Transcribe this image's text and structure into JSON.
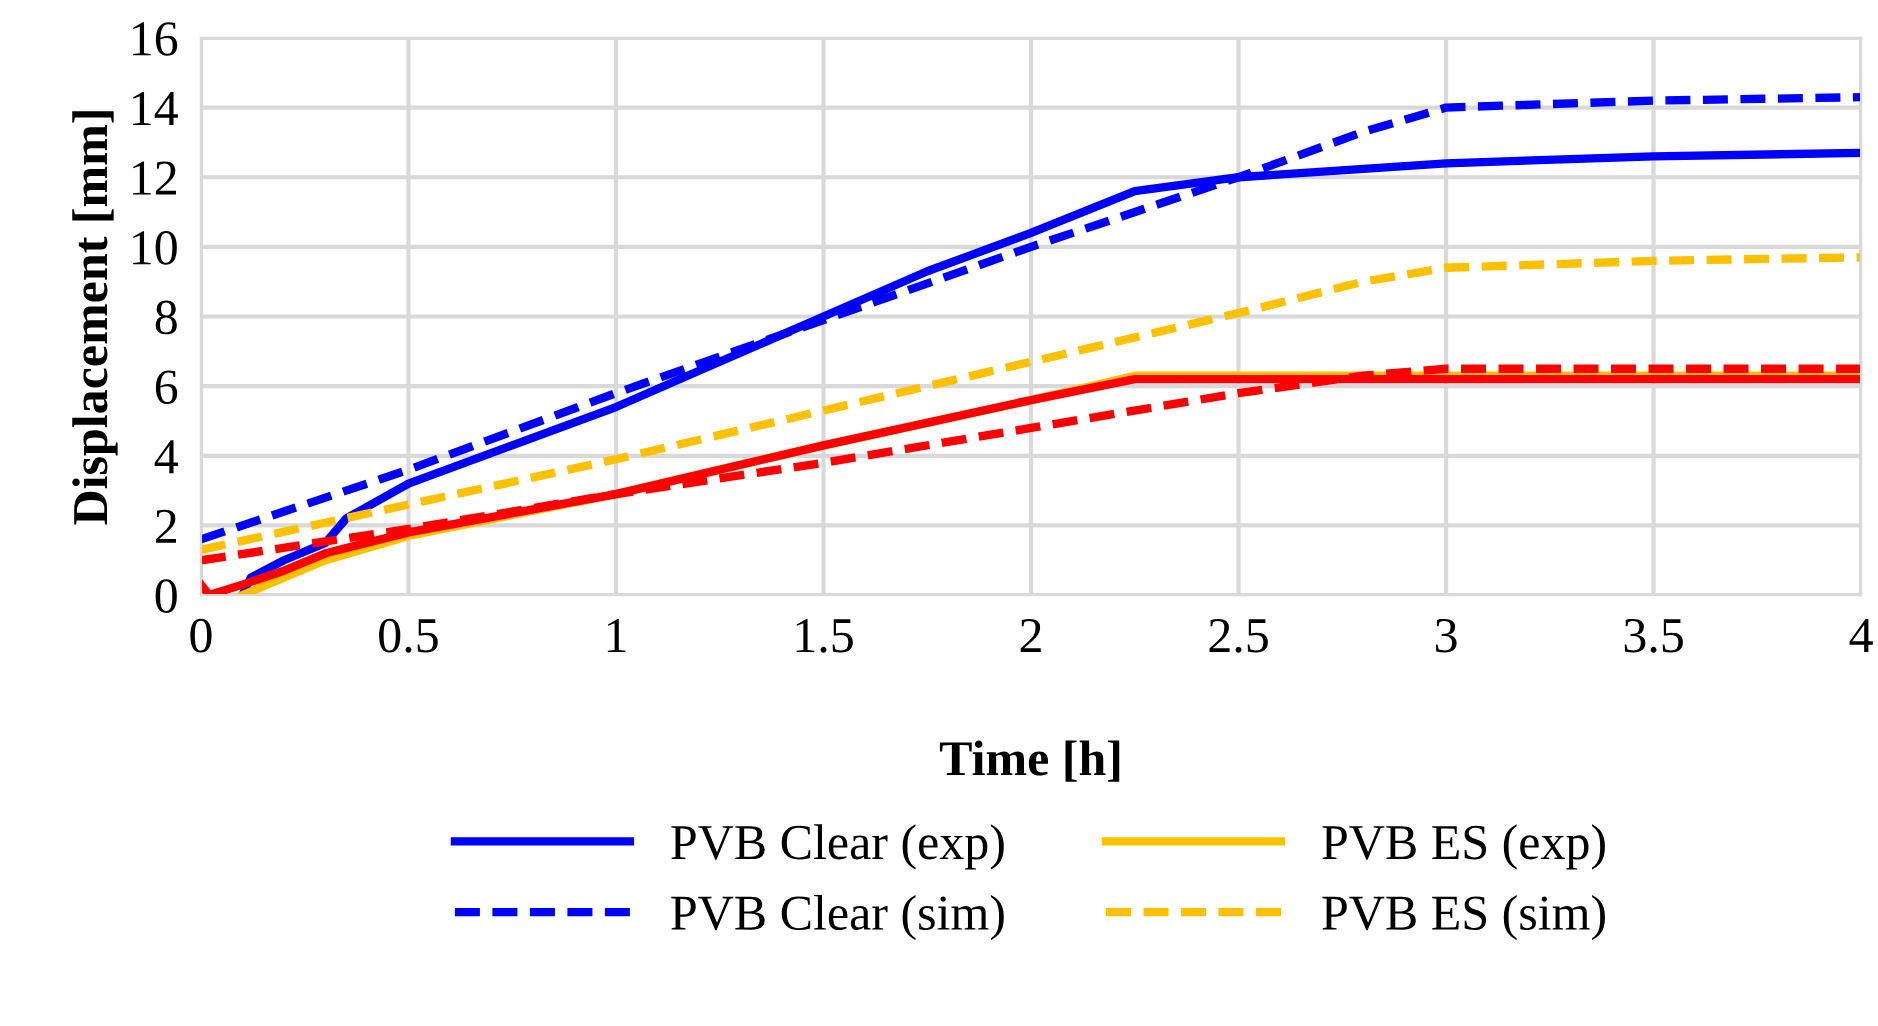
{
  "chart_data": {
    "type": "line",
    "xlabel": "Time [h]",
    "ylabel": "Displacement [mm]",
    "xlim": [
      0,
      4
    ],
    "xticks": [
      0,
      0.5,
      1,
      1.5,
      2,
      2.5,
      3,
      3.5,
      4
    ],
    "ylim": [
      0,
      16
    ],
    "yticks": [
      0,
      2,
      4,
      6,
      8,
      10,
      12,
      14,
      16
    ],
    "grid": true,
    "legend": "bottom",
    "marker": "none",
    "series": [
      {
        "name": "PVB Clear (exp)",
        "color": "#0000ff",
        "line_style": "solid",
        "x": [
          0.1,
          0.12,
          0.2,
          0.3,
          0.35,
          0.5,
          0.75,
          1,
          1.25,
          1.5,
          1.75,
          2,
          2.25,
          2.5,
          3,
          3.5,
          4
        ],
        "values": [
          0,
          0.5,
          1.0,
          1.5,
          2.2,
          3.2,
          4.3,
          5.4,
          6.7,
          8.0,
          9.3,
          10.4,
          11.6,
          12.0,
          12.4,
          12.6,
          12.7
        ]
      },
      {
        "name": "PVB Clear (sim)",
        "color": "#0000ff",
        "line_style": "dashed",
        "x": [
          0,
          0.5,
          1,
          1.5,
          2,
          2.5,
          2.8,
          3,
          3.5,
          4
        ],
        "values": [
          1.6,
          3.6,
          5.8,
          7.9,
          10.0,
          12.0,
          13.3,
          14.0,
          14.2,
          14.3
        ]
      },
      {
        "name": "PVB ES (exp)",
        "color": "#ffc000",
        "line_style": "solid",
        "x": [
          0.1,
          0.3,
          0.5,
          1,
          1.5,
          2,
          2.25,
          3,
          4
        ],
        "values": [
          0,
          1.0,
          1.7,
          2.9,
          4.3,
          5.6,
          6.3,
          6.3,
          6.3
        ]
      },
      {
        "name": "PVB ES (sim)",
        "color": "#ffc000",
        "line_style": "dashed",
        "x": [
          0,
          0.5,
          1,
          1.5,
          2,
          2.5,
          2.8,
          3,
          3.5,
          4
        ],
        "values": [
          1.3,
          2.6,
          3.9,
          5.3,
          6.7,
          8.1,
          9.0,
          9.4,
          9.6,
          9.7
        ]
      },
      {
        "color": "#ff0000",
        "line_style": "solid",
        "x": [
          0,
          0.02,
          0.1,
          0.2,
          0.3,
          0.5,
          1,
          1.5,
          2,
          2.25,
          3,
          4
        ],
        "values": [
          0.3,
          0,
          0.3,
          0.7,
          1.2,
          1.8,
          2.9,
          4.3,
          5.6,
          6.2,
          6.2,
          6.2
        ]
      },
      {
        "color": "#ff0000",
        "line_style": "dashed",
        "x": [
          0,
          0.5,
          1,
          1.5,
          2,
          2.5,
          2.8,
          3,
          4
        ],
        "values": [
          1.0,
          1.9,
          2.9,
          3.8,
          4.8,
          5.8,
          6.3,
          6.5,
          6.5
        ]
      }
    ]
  }
}
